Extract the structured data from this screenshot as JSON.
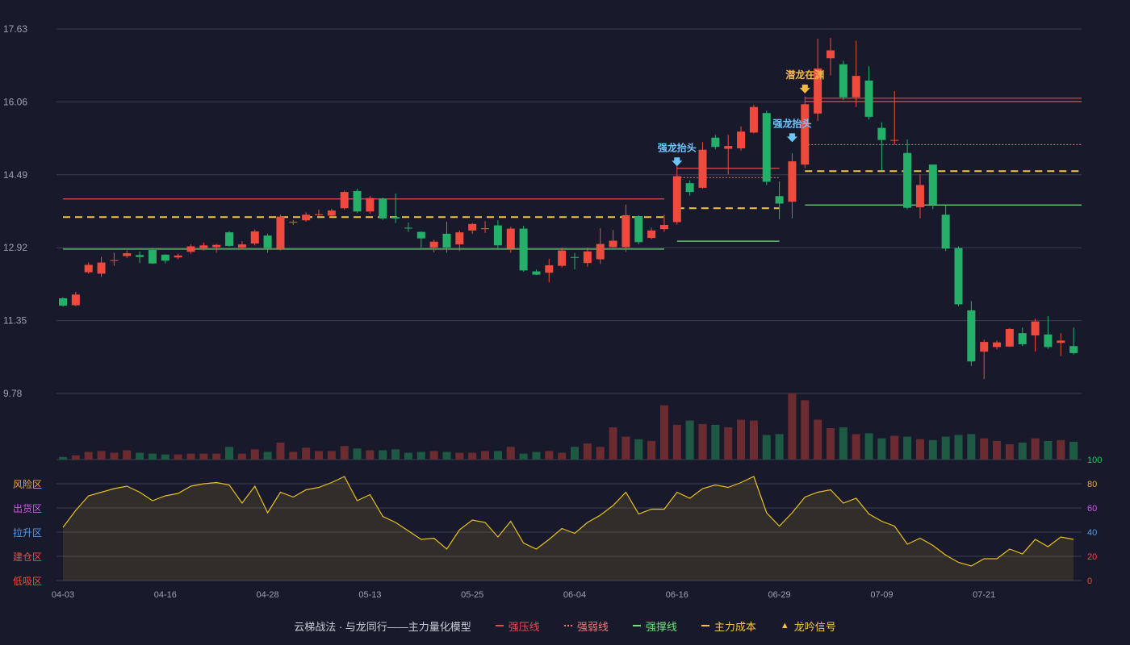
{
  "colors": {
    "up": "#ee4b3e",
    "down": "#25b06a",
    "vol_up": "#6b2c31",
    "vol_down": "#1e5a43",
    "resist": "#e24a4f",
    "weak": "#f07a7a",
    "support": "#6fe07a",
    "cost": "#f5c542",
    "osc": "#e8c020",
    "grid": "#3a3d52",
    "axis_text": "#9da1b2",
    "signal_blue": "#6ec6ff",
    "signal_gold": "#f5b942"
  },
  "legend": {
    "title": "云梯战法 · 与龙同行——主力量化模型",
    "items": [
      {
        "label": "强压线",
        "color": "#e24a4f",
        "style": "solid"
      },
      {
        "label": "强弱线",
        "color": "#f07a7a",
        "style": "dot"
      },
      {
        "label": "强撑线",
        "color": "#6fe07a",
        "style": "solid"
      },
      {
        "label": "主力成本",
        "color": "#f5c542",
        "style": "dash"
      },
      {
        "label": "龙吟信号",
        "color": "#f5c542",
        "style": "triangle"
      }
    ]
  },
  "chart_data": {
    "type": "candlestick",
    "ylim": [
      9.78,
      17.63
    ],
    "yticks": [
      "9.78",
      "11.35",
      "12.92",
      "14.49",
      "16.06",
      "17.63"
    ],
    "xtick_labels": [
      {
        "i": 0,
        "label": "04-03"
      },
      {
        "i": 8,
        "label": "04-16"
      },
      {
        "i": 16,
        "label": "04-28"
      },
      {
        "i": 24,
        "label": "05-13"
      },
      {
        "i": 32,
        "label": "05-25"
      },
      {
        "i": 40,
        "label": "06-04"
      },
      {
        "i": 48,
        "label": "06-16"
      },
      {
        "i": 56,
        "label": "06-29"
      },
      {
        "i": 64,
        "label": "07-09"
      },
      {
        "i": 72,
        "label": "07-21"
      }
    ],
    "candles": [
      [
        11.83,
        11.67,
        11.85,
        11.65
      ],
      [
        11.68,
        11.91,
        11.97,
        11.66
      ],
      [
        12.39,
        12.55,
        12.6,
        12.36
      ],
      [
        12.36,
        12.6,
        12.72,
        12.29
      ],
      [
        12.65,
        12.65,
        12.81,
        12.53
      ],
      [
        12.74,
        12.8,
        12.86,
        12.7
      ],
      [
        12.76,
        12.72,
        12.84,
        12.59
      ],
      [
        12.87,
        12.58,
        12.91,
        12.57
      ],
      [
        12.77,
        12.64,
        12.78,
        12.58
      ],
      [
        12.71,
        12.75,
        12.79,
        12.67
      ],
      [
        12.83,
        12.95,
        12.99,
        12.79
      ],
      [
        12.91,
        12.97,
        13.03,
        12.86
      ],
      [
        12.93,
        12.98,
        13.0,
        12.81
      ],
      [
        13.25,
        12.96,
        13.28,
        12.94
      ],
      [
        12.92,
        12.99,
        13.06,
        12.88
      ],
      [
        13.01,
        13.27,
        13.31,
        12.97
      ],
      [
        13.18,
        12.91,
        13.22,
        12.81
      ],
      [
        12.89,
        13.59,
        13.63,
        12.86
      ],
      [
        13.46,
        13.48,
        13.52,
        13.41
      ],
      [
        13.51,
        13.63,
        13.68,
        13.48
      ],
      [
        13.62,
        13.64,
        13.74,
        13.59
      ],
      [
        13.61,
        13.72,
        13.76,
        13.59
      ],
      [
        13.77,
        14.12,
        14.15,
        13.74
      ],
      [
        14.14,
        13.7,
        14.19,
        13.67
      ],
      [
        13.7,
        13.99,
        14.03,
        13.65
      ],
      [
        13.98,
        13.55,
        14.0,
        13.52
      ],
      [
        13.58,
        13.55,
        14.09,
        13.45
      ],
      [
        13.35,
        13.34,
        13.46,
        13.26
      ],
      [
        13.26,
        13.12,
        13.27,
        12.92
      ],
      [
        12.92,
        13.05,
        13.09,
        12.82
      ],
      [
        13.22,
        12.92,
        13.48,
        12.81
      ],
      [
        12.99,
        13.25,
        13.29,
        12.85
      ],
      [
        13.29,
        13.43,
        13.45,
        13.22
      ],
      [
        13.32,
        13.34,
        13.49,
        13.24
      ],
      [
        13.4,
        12.97,
        13.51,
        12.89
      ],
      [
        12.9,
        13.33,
        13.37,
        12.81
      ],
      [
        13.33,
        12.43,
        13.39,
        12.4
      ],
      [
        12.41,
        12.34,
        12.45,
        12.33
      ],
      [
        12.38,
        12.54,
        12.68,
        12.17
      ],
      [
        12.53,
        12.86,
        12.92,
        12.49
      ],
      [
        12.72,
        12.71,
        12.8,
        12.45
      ],
      [
        12.59,
        12.84,
        12.92,
        12.51
      ],
      [
        12.67,
        13.0,
        13.34,
        12.57
      ],
      [
        12.93,
        13.07,
        13.3,
        12.92
      ],
      [
        12.93,
        13.62,
        13.85,
        12.83
      ],
      [
        13.6,
        13.04,
        13.62,
        12.99
      ],
      [
        13.13,
        13.29,
        13.35,
        13.1
      ],
      [
        13.32,
        13.41,
        13.63,
        13.26
      ],
      [
        13.47,
        14.46,
        14.78,
        13.42
      ],
      [
        14.31,
        14.12,
        14.37,
        14.04
      ],
      [
        14.21,
        15.03,
        15.19,
        14.19
      ],
      [
        15.29,
        15.09,
        15.35,
        15.04
      ],
      [
        15.05,
        15.11,
        15.35,
        14.5
      ],
      [
        15.06,
        15.42,
        15.53,
        15.01
      ],
      [
        15.4,
        15.95,
        16.0,
        15.38
      ],
      [
        15.82,
        14.34,
        15.87,
        14.27
      ],
      [
        14.03,
        13.87,
        14.35,
        13.53
      ],
      [
        13.91,
        14.78,
        14.96,
        13.55
      ],
      [
        14.71,
        16.01,
        16.18,
        14.63
      ],
      [
        15.81,
        16.78,
        17.42,
        15.65
      ],
      [
        17.0,
        17.17,
        17.44,
        16.63
      ],
      [
        16.87,
        16.16,
        16.95,
        16.1
      ],
      [
        16.16,
        16.62,
        17.38,
        15.95
      ],
      [
        16.52,
        15.74,
        16.83,
        15.68
      ],
      [
        15.5,
        15.24,
        15.62,
        14.58
      ],
      [
        15.24,
        15.24,
        16.29,
        15.14
      ],
      [
        14.96,
        13.78,
        15.25,
        13.75
      ],
      [
        13.79,
        14.27,
        14.5,
        13.55
      ],
      [
        14.71,
        13.85,
        14.71,
        13.75
      ],
      [
        13.63,
        12.9,
        13.83,
        12.85
      ],
      [
        12.91,
        11.7,
        12.95,
        11.66
      ],
      [
        11.57,
        10.47,
        11.77,
        10.37
      ],
      [
        10.68,
        10.89,
        10.94,
        10.09
      ],
      [
        10.78,
        10.88,
        10.92,
        10.73
      ],
      [
        10.79,
        11.17,
        11.19,
        10.78
      ],
      [
        11.08,
        10.84,
        11.2,
        10.8
      ],
      [
        11.03,
        11.33,
        11.39,
        10.68
      ],
      [
        11.05,
        10.78,
        11.45,
        10.74
      ],
      [
        10.87,
        10.92,
        11.08,
        10.58
      ],
      [
        10.8,
        10.65,
        11.2,
        10.62
      ]
    ],
    "volume": [
      3,
      5,
      9,
      10,
      8,
      11,
      8,
      7,
      6,
      6,
      7,
      7,
      7,
      15,
      7,
      12,
      9,
      20,
      9,
      14,
      10,
      10,
      16,
      13,
      11,
      11,
      12,
      8,
      9,
      10,
      9,
      8,
      8,
      10,
      10,
      15,
      7,
      9,
      10,
      8,
      15,
      19,
      15,
      38,
      27,
      24,
      22,
      64,
      41,
      46,
      42,
      41,
      38,
      47,
      46,
      29,
      30,
      78,
      70,
      47,
      37,
      38,
      30,
      31,
      25,
      28,
      27,
      24,
      23,
      27,
      29,
      30,
      25,
      22,
      18,
      20,
      25,
      22,
      23,
      21
    ],
    "osc": [
      44,
      58,
      70,
      73,
      76,
      78,
      73,
      66,
      70,
      72,
      78,
      80,
      81,
      79,
      64,
      78,
      56,
      73,
      69,
      75,
      77,
      81,
      86,
      66,
      71,
      53,
      48,
      41,
      34,
      35,
      26,
      42,
      50,
      48,
      36,
      49,
      31,
      26,
      34,
      43,
      39,
      48,
      54,
      62,
      73,
      55,
      59,
      59,
      73,
      68,
      76,
      79,
      77,
      81,
      86,
      56,
      45,
      56,
      69,
      73,
      75,
      64,
      68,
      55,
      49,
      45,
      30,
      35,
      29,
      21,
      15,
      12,
      18,
      18,
      26,
      22,
      34,
      28,
      36,
      34
    ],
    "osc_labels": [
      {
        "label": "风险区",
        "color": "#f0a830"
      },
      {
        "label": "出货区",
        "color": "#d653e6"
      },
      {
        "label": "拉升区",
        "color": "#4d9af0"
      },
      {
        "label": "建仓区",
        "color": "#ee4b3e"
      },
      {
        "label": "低吸区",
        "color": "#ee4b3e"
      }
    ],
    "osc_ticks": [
      {
        "value": "100",
        "color": "#22c55e"
      },
      {
        "value": "80",
        "color": "#f0a830"
      },
      {
        "value": "60",
        "color": "#d653e6"
      },
      {
        "value": "40",
        "color": "#4d9af0"
      },
      {
        "value": "20",
        "color": "#ee4b3e"
      },
      {
        "value": "0",
        "color": "#ee4b3e"
      }
    ],
    "levels": [
      {
        "kind": "resist",
        "from": 0,
        "to": 47,
        "y": 13.97
      },
      {
        "kind": "cost",
        "from": 0,
        "to": 47,
        "y": 13.58
      },
      {
        "kind": "support",
        "from": 0,
        "to": 47,
        "y": 12.89
      },
      {
        "kind": "resist",
        "from": 48,
        "to": 56,
        "y": 14.63
      },
      {
        "kind": "weak",
        "from": 48,
        "to": 56,
        "y": 14.43
      },
      {
        "kind": "cost",
        "from": 48,
        "to": 56,
        "y": 13.77
      },
      {
        "kind": "support",
        "from": 48,
        "to": 56,
        "y": 13.06
      },
      {
        "kind": "resist",
        "from": 58,
        "to": 80,
        "y": 16.14
      },
      {
        "kind": "resist",
        "from": 58,
        "to": 80,
        "y": 16.07
      },
      {
        "kind": "weak",
        "from": 58,
        "to": 80,
        "y": 15.14
      },
      {
        "kind": "cost",
        "from": 58,
        "to": 80,
        "y": 14.57
      },
      {
        "kind": "support",
        "from": 58,
        "to": 80,
        "y": 13.84
      }
    ],
    "signals": [
      {
        "i": 48,
        "label": "强龙抬头",
        "color": "#6ec6ff",
        "y": 14.69
      },
      {
        "i": 57,
        "label": "强龙抬头",
        "color": "#6ec6ff",
        "y": 15.21
      },
      {
        "i": 58,
        "label": "潜龙在渊",
        "color": "#f5b942",
        "y": 16.26
      }
    ]
  }
}
